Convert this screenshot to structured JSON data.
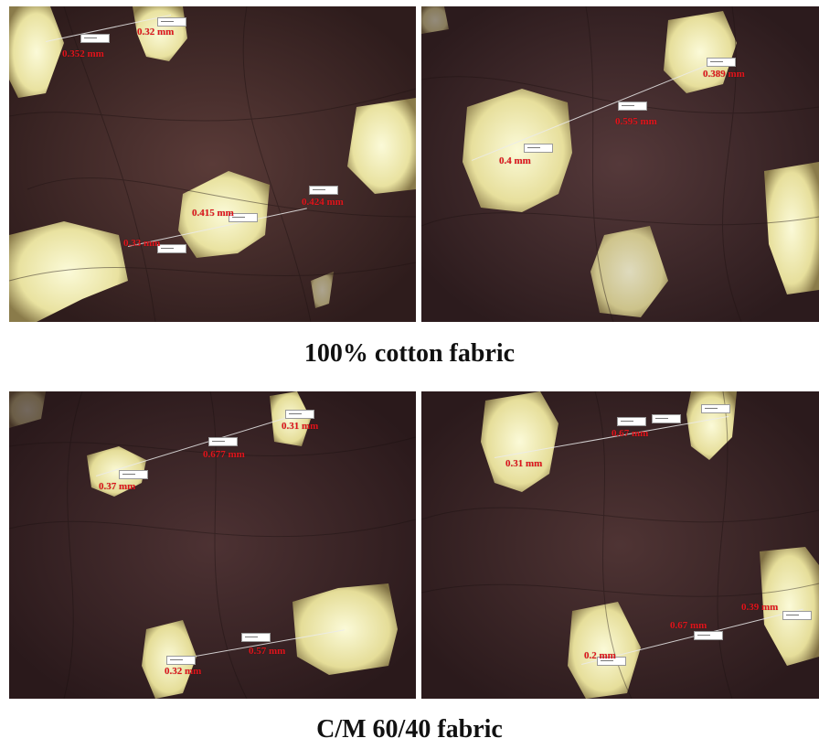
{
  "captions": {
    "top": "100% cotton fabric",
    "bottom": "C/M 60/40 fabric"
  },
  "panels": [
    {
      "labels": [
        "0.32 mm",
        "0.352 mm",
        "0.415 mm",
        "0.424 mm",
        "0.33 mm"
      ]
    },
    {
      "labels": [
        "0.389 mm",
        "0.595 mm",
        "0.4 mm"
      ]
    },
    {
      "labels": [
        "0.31 mm",
        "0.677 mm",
        "0.37 mm",
        "0.57 mm",
        "0.32 mm"
      ]
    },
    {
      "labels": [
        "0.67 mm",
        "0.31 mm",
        "0.39 mm",
        "0.67 mm",
        "0.2 mm"
      ]
    }
  ],
  "colors": {
    "measurement_text": "#e0141b",
    "fiber_dark": "#3a2424",
    "pore_light": "#f6f3c8"
  }
}
